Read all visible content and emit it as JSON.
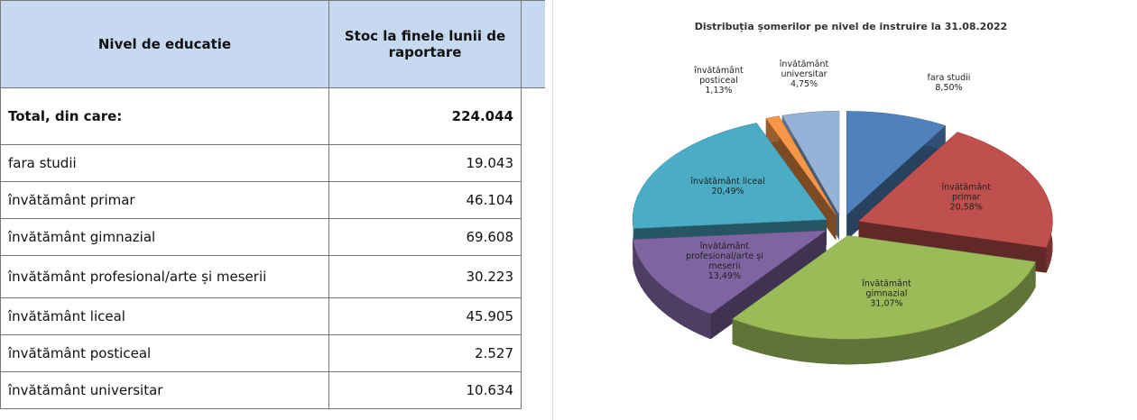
{
  "table": {
    "header": [
      "Nivel de educatie",
      "Stoc la finele lunii de raportare"
    ],
    "rows": [
      [
        "Total, din care:",
        "224.044"
      ],
      [
        "fara studii",
        "19.043"
      ],
      [
        "învătământ primar",
        "46.104"
      ],
      [
        "învătământ gimnazial",
        "69.608"
      ],
      [
        "învătământ profesional/arte și meserii",
        "30.223"
      ],
      [
        "învătământ liceal",
        "45.905"
      ],
      [
        "învătământ posticeal",
        "2.527"
      ],
      [
        "învătământ universitar",
        "10.634"
      ]
    ]
  },
  "chart_data": {
    "type": "pie",
    "title": "Distribuția șomerilor pe nivel de  instruire la 31.08.2022",
    "categories": [
      "fara studii",
      "învătământ primar",
      "învătământ gimnazial",
      "învătământ profesional/arte și meserii",
      "învătământ liceal",
      "învătământ posticeal",
      "învătământ universitar"
    ],
    "values": [
      8.5,
      20.58,
      31.07,
      13.49,
      20.49,
      1.13,
      4.75
    ],
    "value_labels": [
      "8,50%",
      "20,58%",
      "31,07%",
      "13,49%",
      "20,49%",
      "1,13%",
      "4,75%"
    ],
    "colors": [
      "#4f81bd",
      "#c0504d",
      "#9bbb59",
      "#8064a2",
      "#4bacc6",
      "#f79646",
      "#95b3d7"
    ]
  }
}
